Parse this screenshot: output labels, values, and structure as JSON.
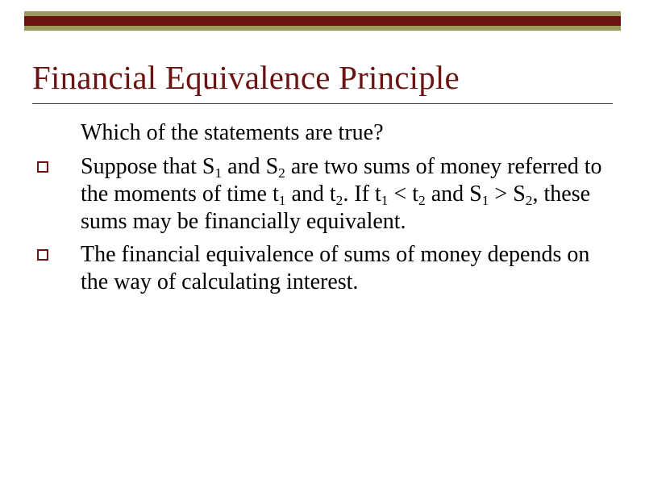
{
  "colors": {
    "olive": "#9a9a5c",
    "maroon": "#6b1212",
    "title": "#6b1212",
    "body_text": "#000000",
    "bullet_border": "#6b1212",
    "underline": "#404040",
    "background": "#ffffff"
  },
  "title": "Financial Equivalence Principle",
  "intro": "Which of the statements are true?",
  "items": [
    {
      "text_html": "Suppose that S<sub>1</sub> and S<sub>2</sub> are two sums of money referred to the moments of time t<sub>1</sub> and t<sub>2</sub>. If t<sub>1</sub> < t<sub>2</sub> and S<sub>1</sub> > S<sub>2</sub>, these sums may be financially equivalent."
    },
    {
      "text_html": "The financial equivalence of sums of money depends on the way of calculating interest."
    }
  ],
  "layout": {
    "slide_w": 800,
    "slide_h": 600,
    "title_fontsize": 41,
    "body_fontsize": 28,
    "bullet_size": 14,
    "bullet_border_width": 2
  }
}
